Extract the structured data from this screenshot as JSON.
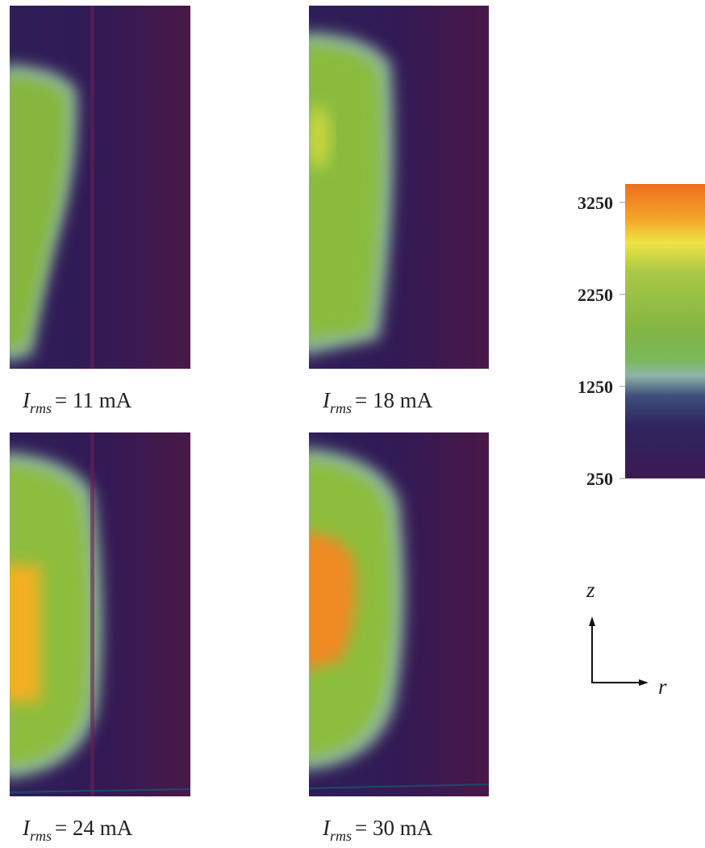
{
  "panels": [
    {
      "symbol": "I",
      "subscript": "rms",
      "rest": "= 11 mA"
    },
    {
      "symbol": "I",
      "subscript": "rms",
      "rest": "= 18 mA"
    },
    {
      "symbol": "I",
      "subscript": "rms",
      "rest": "= 24 mA"
    },
    {
      "symbol": "I",
      "subscript": "rms",
      "rest": "= 30 mA"
    }
  ],
  "colorbar": {
    "lim": [
      250,
      3450
    ],
    "ticks": [
      3250,
      2250,
      1250,
      250
    ]
  },
  "axes_indicator": {
    "vertical": "z",
    "horizontal": "r"
  }
}
